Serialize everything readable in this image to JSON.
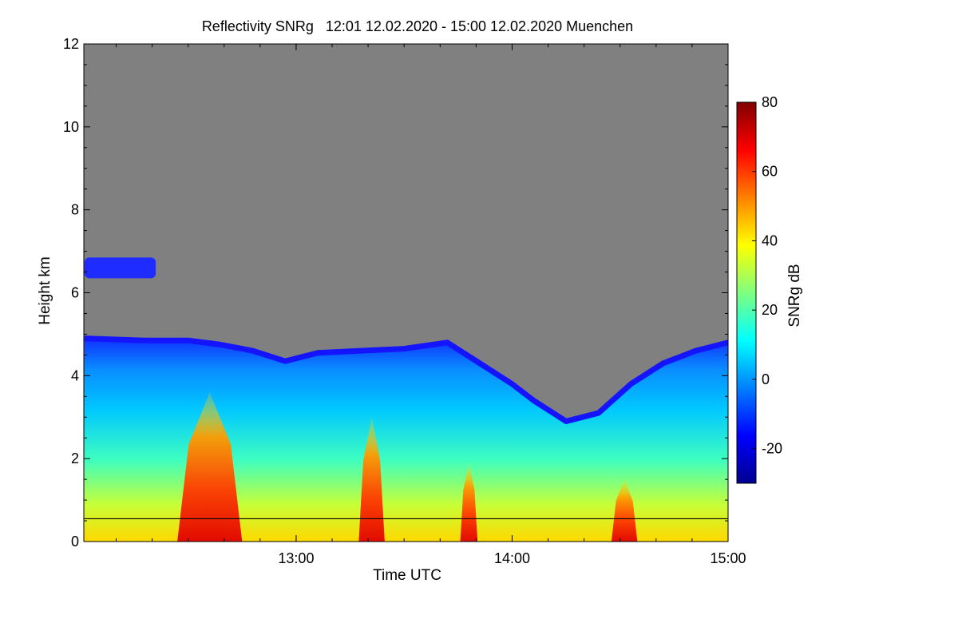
{
  "chart_data": {
    "type": "heatmap",
    "title": "Reflectivity SNRg   12:01 12.02.2020 - 15:00 12.02.2020 Muenchen",
    "xlabel": "Time UTC",
    "ylabel": "Height km",
    "x_range": [
      "12:01",
      "15:00"
    ],
    "xlim_hours": [
      12.017,
      15.0
    ],
    "ylim": [
      0,
      12
    ],
    "x_ticks": [
      {
        "t": 13.0,
        "label": "13:00"
      },
      {
        "t": 14.0,
        "label": "14:00"
      },
      {
        "t": 15.0,
        "label": "15:00"
      }
    ],
    "y_ticks": [
      {
        "v": 0,
        "label": "0"
      },
      {
        "v": 2,
        "label": "2"
      },
      {
        "v": 4,
        "label": "4"
      },
      {
        "v": 6,
        "label": "6"
      },
      {
        "v": 8,
        "label": "8"
      },
      {
        "v": 10,
        "label": "10"
      },
      {
        "v": 12,
        "label": "12"
      }
    ],
    "colorbar": {
      "label": "SNRg dB",
      "range": [
        -30,
        80
      ],
      "ticks": [
        {
          "v": -20,
          "label": "-20"
        },
        {
          "v": 0,
          "label": "0"
        },
        {
          "v": 20,
          "label": "20"
        },
        {
          "v": 40,
          "label": "40"
        },
        {
          "v": 60,
          "label": "60"
        },
        {
          "v": 80,
          "label": "80"
        }
      ],
      "colormap": "jet"
    },
    "reference_line_km": 0.55,
    "cloud_top_km": [
      {
        "t": 12.02,
        "h": 4.9
      },
      {
        "t": 12.3,
        "h": 4.85
      },
      {
        "t": 12.5,
        "h": 4.85
      },
      {
        "t": 12.65,
        "h": 4.75
      },
      {
        "t": 12.8,
        "h": 4.6
      },
      {
        "t": 12.95,
        "h": 4.35
      },
      {
        "t": 13.1,
        "h": 4.55
      },
      {
        "t": 13.3,
        "h": 4.6
      },
      {
        "t": 13.5,
        "h": 4.65
      },
      {
        "t": 13.7,
        "h": 4.8
      },
      {
        "t": 13.85,
        "h": 4.3
      },
      {
        "t": 14.0,
        "h": 3.8
      },
      {
        "t": 14.1,
        "h": 3.4
      },
      {
        "t": 14.25,
        "h": 2.9
      },
      {
        "t": 14.4,
        "h": 3.1
      },
      {
        "t": 14.55,
        "h": 3.8
      },
      {
        "t": 14.7,
        "h": 4.3
      },
      {
        "t": 14.85,
        "h": 4.6
      },
      {
        "t": 15.0,
        "h": 4.8
      }
    ],
    "high_cloud_layer": {
      "t_start": 12.02,
      "t_end": 12.35,
      "h_bottom": 6.35,
      "h_top": 6.85,
      "snr_db": -10
    },
    "strong_echo_bands": [
      {
        "t_center": 12.6,
        "width_h": 0.3,
        "top_km": 3.6,
        "snr_db": 70
      },
      {
        "t_center": 13.35,
        "width_h": 0.12,
        "top_km": 3.0,
        "snr_db": 65
      },
      {
        "t_center": 13.8,
        "width_h": 0.08,
        "top_km": 1.9,
        "snr_db": 55
      },
      {
        "t_center": 14.52,
        "width_h": 0.12,
        "top_km": 1.5,
        "snr_db": 50
      }
    ],
    "colors": {
      "background_no_signal": "#808080",
      "axis": "#000000",
      "reference_line": "#000000"
    }
  }
}
